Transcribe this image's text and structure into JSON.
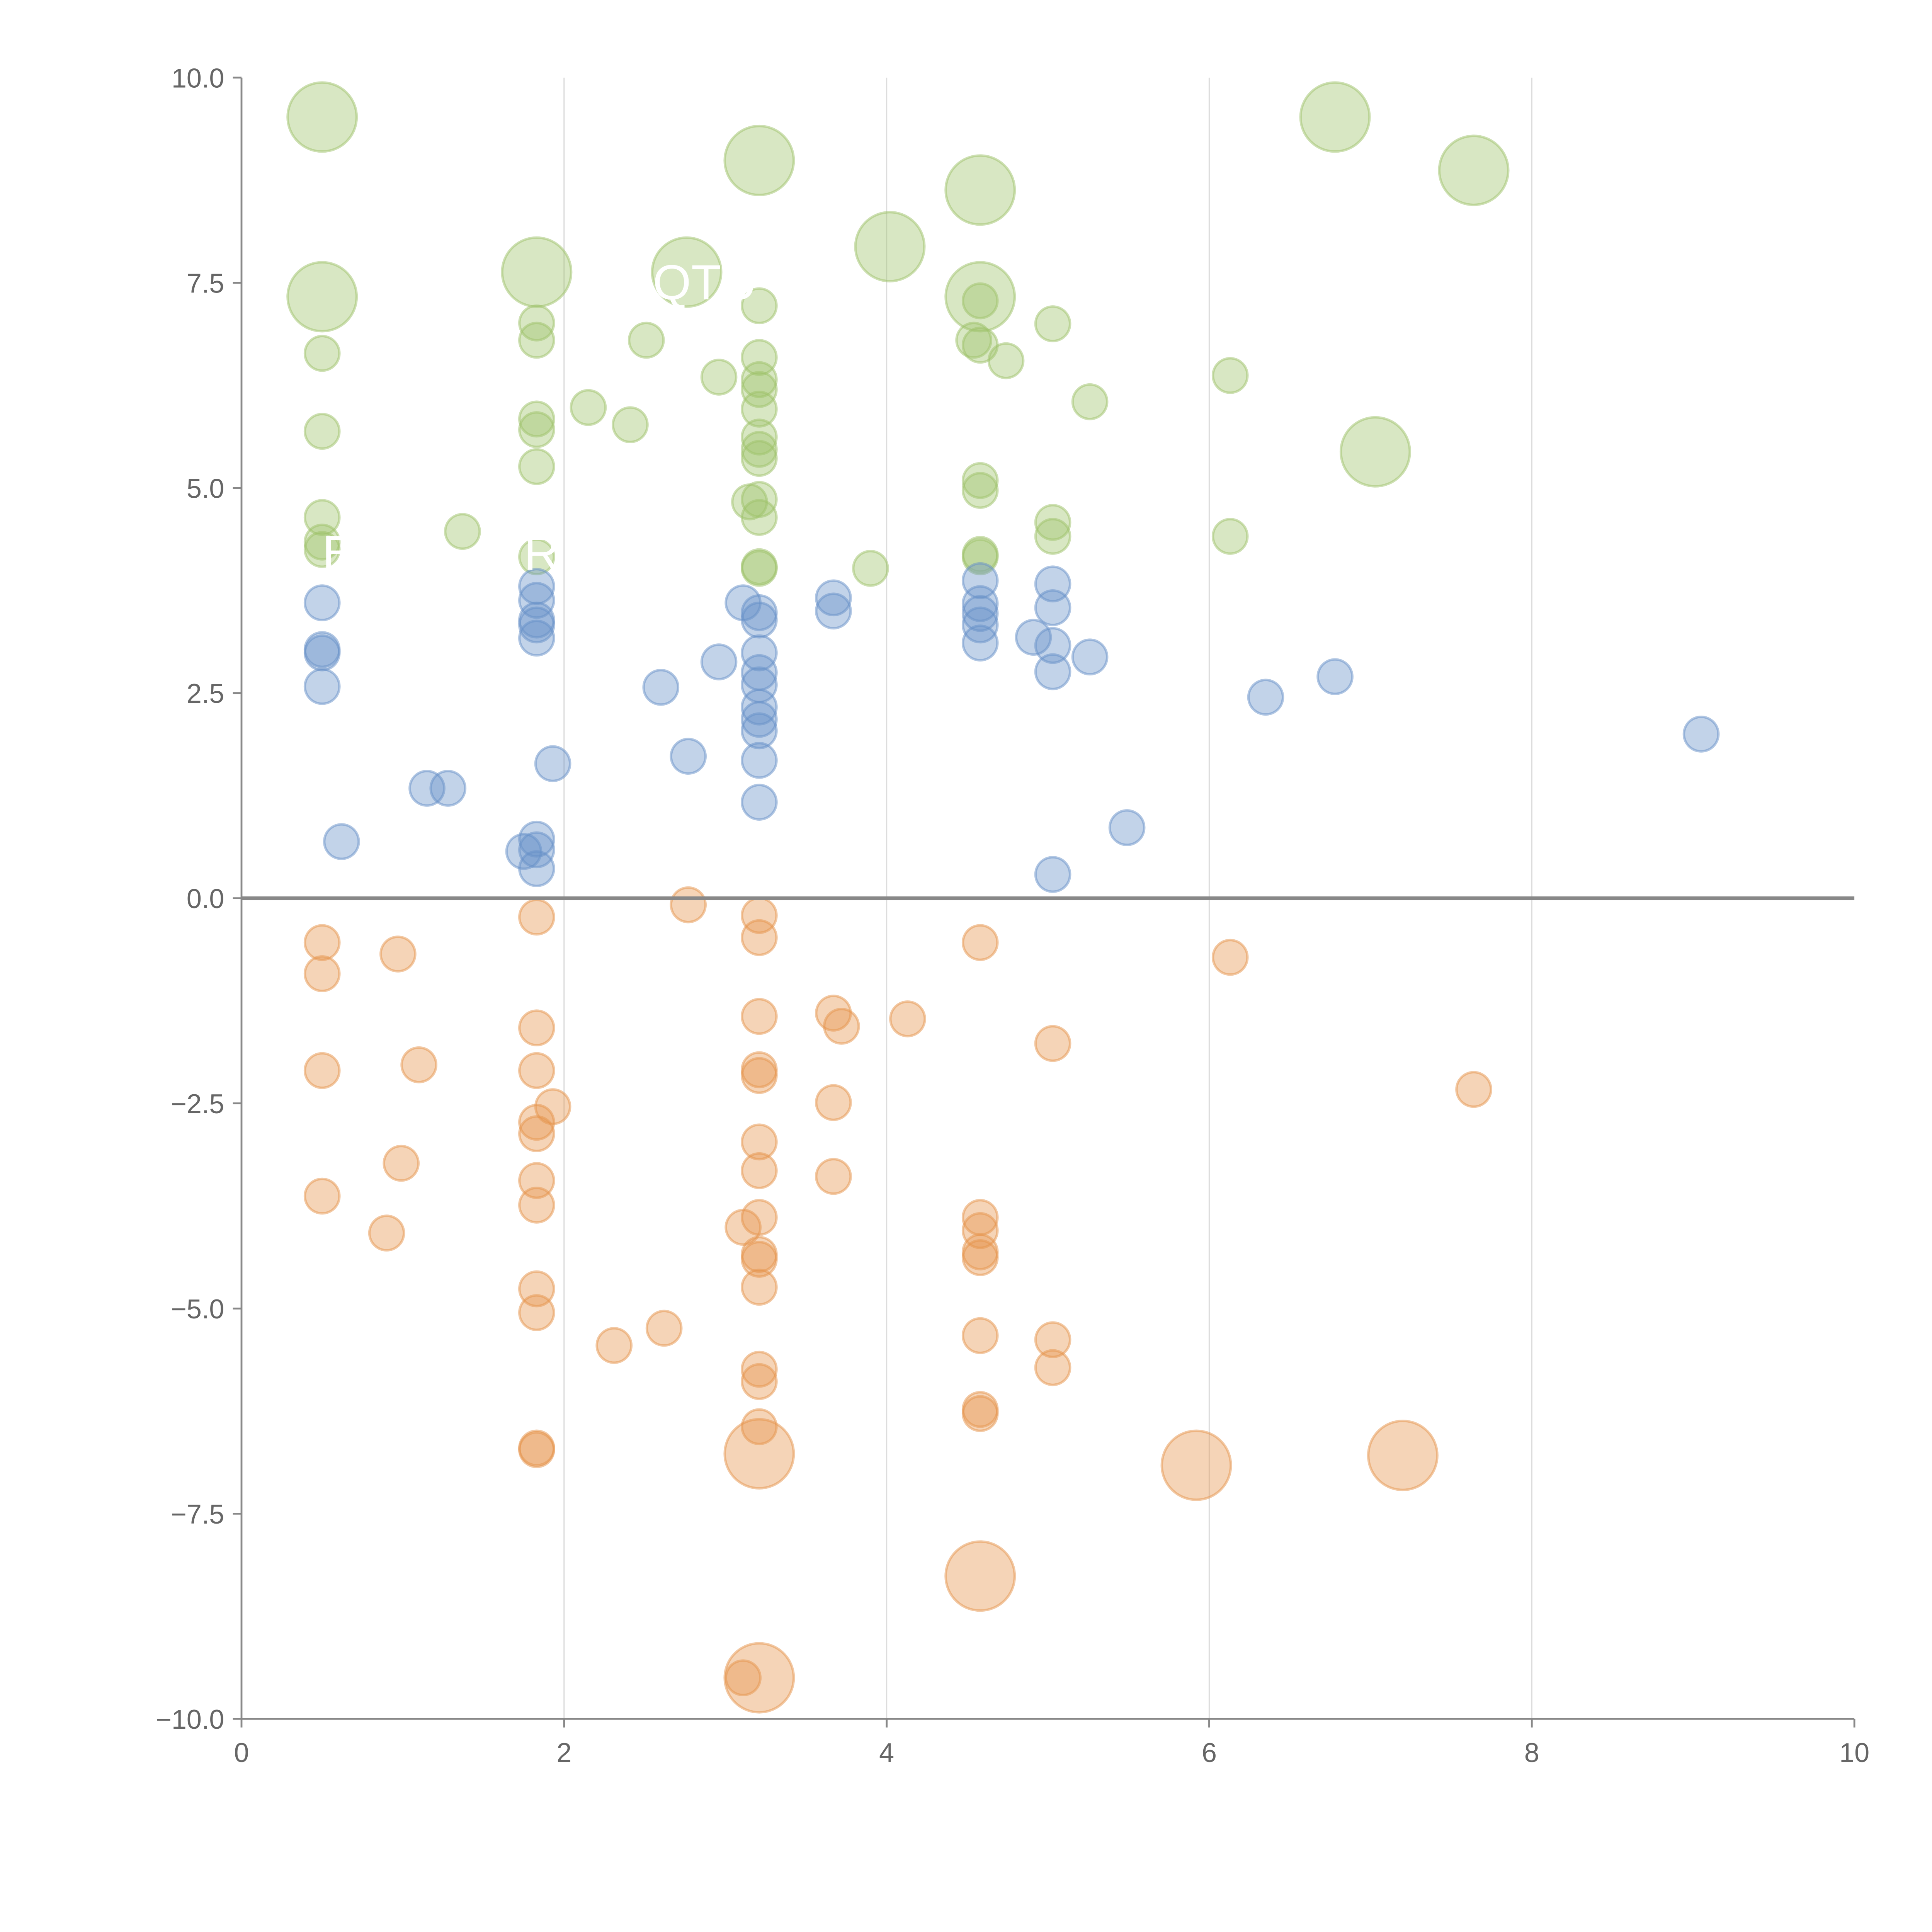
{
  "chart_data": {
    "type": "scatter",
    "title": "",
    "xlabel": "",
    "ylabel": "",
    "xlim": [
      0,
      10
    ],
    "ylim": [
      -10,
      10
    ],
    "grid": "vertical",
    "x_ticks": [
      "0",
      "2",
      "4",
      "6",
      "8",
      "10"
    ],
    "x_tick_values": [
      0,
      2,
      4,
      6,
      8,
      10
    ],
    "y_ticks": [
      "10.0",
      "7.5",
      "5.0",
      "2.5",
      "0.0",
      "−2.5",
      "−5.0",
      "−7.5",
      "−10.0"
    ],
    "y_tick_values": [
      10,
      7.5,
      5,
      2.5,
      0,
      -2.5,
      -5,
      -7.5,
      -10
    ],
    "colors": {
      "green": "#9ec26a",
      "blue": "#6690c8",
      "orange": "#e5944c",
      "axis": "#888888",
      "grid": "#dddddd"
    },
    "annotations": [
      {
        "text": "QTU",
        "x": 2.55,
        "y": 7.3
      },
      {
        "text": "B",
        "x": 0.5,
        "y": 4.0
      },
      {
        "text": "R",
        "x": 1.75,
        "y": 4.0
      }
    ],
    "series": [
      {
        "name": "green",
        "color": "#9ec26a",
        "points": [
          [
            0.5,
            9.52,
            4
          ],
          [
            0.5,
            7.33,
            4
          ],
          [
            1.83,
            7.63,
            4
          ],
          [
            2.76,
            7.63,
            4
          ],
          [
            3.21,
            8.99,
            4
          ],
          [
            4.02,
            7.94,
            4
          ],
          [
            4.58,
            8.63,
            4
          ],
          [
            4.58,
            7.33,
            4
          ],
          [
            6.78,
            9.52,
            4
          ],
          [
            7.64,
            8.87,
            4
          ],
          [
            7.03,
            5.44,
            4
          ],
          [
            0.5,
            6.64,
            1
          ],
          [
            0.5,
            5.69,
            1
          ],
          [
            0.5,
            4.64,
            1
          ],
          [
            0.5,
            4.34,
            1
          ],
          [
            0.5,
            4.25,
            1
          ],
          [
            1.37,
            4.47,
            1
          ],
          [
            1.83,
            7.01,
            1
          ],
          [
            1.83,
            6.8,
            1
          ],
          [
            1.83,
            5.84,
            1
          ],
          [
            1.83,
            5.71,
            1
          ],
          [
            1.83,
            5.26,
            1
          ],
          [
            1.83,
            4.16,
            1
          ],
          [
            2.15,
            5.98,
            1
          ],
          [
            2.41,
            5.77,
            1
          ],
          [
            2.51,
            6.8,
            1
          ],
          [
            2.96,
            6.35,
            1
          ],
          [
            3.21,
            7.22,
            1
          ],
          [
            3.21,
            6.59,
            1
          ],
          [
            3.21,
            6.32,
            1
          ],
          [
            3.21,
            6.2,
            1
          ],
          [
            3.21,
            5.96,
            1
          ],
          [
            3.21,
            5.62,
            1
          ],
          [
            3.21,
            5.47,
            1
          ],
          [
            3.21,
            5.36,
            1
          ],
          [
            3.15,
            4.83,
            1
          ],
          [
            3.21,
            4.86,
            1
          ],
          [
            3.21,
            4.64,
            1
          ],
          [
            3.21,
            4.04,
            1
          ],
          [
            3.21,
            4.02,
            1
          ],
          [
            3.9,
            4.02,
            1
          ],
          [
            4.54,
            6.8,
            1
          ],
          [
            4.58,
            7.28,
            1
          ],
          [
            4.58,
            6.74,
            1
          ],
          [
            4.74,
            6.55,
            1
          ],
          [
            4.58,
            5.09,
            1
          ],
          [
            4.58,
            4.97,
            1
          ],
          [
            4.58,
            4.19,
            1
          ],
          [
            4.58,
            4.16,
            1
          ],
          [
            5.03,
            7.0,
            1
          ],
          [
            5.03,
            4.58,
            1
          ],
          [
            5.03,
            4.41,
            1
          ],
          [
            5.26,
            6.05,
            1
          ],
          [
            6.13,
            6.37,
            1
          ],
          [
            6.13,
            4.41,
            1
          ]
        ]
      },
      {
        "name": "blue",
        "color": "#6690c8",
        "points": [
          [
            0.5,
            3.6,
            1
          ],
          [
            0.5,
            3.03,
            1
          ],
          [
            0.5,
            2.99,
            1
          ],
          [
            0.5,
            2.58,
            1
          ],
          [
            0.62,
            0.69,
            1
          ],
          [
            1.15,
            1.34,
            1
          ],
          [
            1.28,
            1.34,
            1
          ],
          [
            1.83,
            3.8,
            1
          ],
          [
            1.83,
            3.63,
            1
          ],
          [
            1.83,
            3.39,
            1
          ],
          [
            1.83,
            3.33,
            1
          ],
          [
            1.83,
            3.17,
            1
          ],
          [
            1.83,
            0.72,
            1
          ],
          [
            1.83,
            0.59,
            1
          ],
          [
            1.75,
            0.57,
            1
          ],
          [
            1.83,
            0.36,
            1
          ],
          [
            1.93,
            1.64,
            1
          ],
          [
            2.6,
            2.57,
            1
          ],
          [
            2.77,
            1.73,
            1
          ],
          [
            2.96,
            2.88,
            1
          ],
          [
            3.11,
            3.6,
            1
          ],
          [
            3.21,
            3.48,
            1
          ],
          [
            3.21,
            3.39,
            1
          ],
          [
            3.21,
            2.99,
            1
          ],
          [
            3.21,
            2.75,
            1
          ],
          [
            3.21,
            2.6,
            1
          ],
          [
            3.21,
            2.33,
            1
          ],
          [
            3.21,
            2.18,
            1
          ],
          [
            3.21,
            2.04,
            1
          ],
          [
            3.21,
            1.68,
            1
          ],
          [
            3.21,
            1.17,
            1
          ],
          [
            3.67,
            3.66,
            1
          ],
          [
            3.67,
            3.5,
            1
          ],
          [
            4.58,
            3.87,
            1
          ],
          [
            4.58,
            3.59,
            1
          ],
          [
            4.58,
            3.47,
            1
          ],
          [
            4.58,
            3.33,
            1
          ],
          [
            4.58,
            3.11,
            1
          ],
          [
            4.91,
            3.18,
            1
          ],
          [
            5.03,
            3.83,
            1
          ],
          [
            5.03,
            3.54,
            1
          ],
          [
            5.03,
            3.08,
            1
          ],
          [
            5.03,
            2.76,
            1
          ],
          [
            5.26,
            2.94,
            1
          ],
          [
            5.49,
            0.86,
            1
          ],
          [
            5.03,
            0.29,
            1
          ],
          [
            6.35,
            2.45,
            1
          ],
          [
            6.78,
            2.7,
            1
          ],
          [
            9.05,
            2.0,
            1
          ]
        ]
      },
      {
        "name": "orange",
        "color": "#e5944c",
        "points": [
          [
            3.21,
            -6.77,
            4
          ],
          [
            3.21,
            -9.5,
            4
          ],
          [
            4.58,
            -8.26,
            4
          ],
          [
            5.92,
            -6.91,
            4
          ],
          [
            7.2,
            -6.79,
            4
          ],
          [
            0.5,
            -0.54,
            1
          ],
          [
            0.5,
            -0.92,
            1
          ],
          [
            0.5,
            -2.1,
            1
          ],
          [
            0.5,
            -3.63,
            1
          ],
          [
            0.97,
            -0.68,
            1
          ],
          [
            1.1,
            -2.03,
            1
          ],
          [
            0.99,
            -3.23,
            1
          ],
          [
            0.9,
            -4.08,
            1
          ],
          [
            1.83,
            -0.23,
            1
          ],
          [
            1.83,
            -1.58,
            1
          ],
          [
            1.83,
            -2.1,
            1
          ],
          [
            1.83,
            -2.73,
            1
          ],
          [
            1.83,
            -2.87,
            1
          ],
          [
            1.93,
            -2.54,
            1
          ],
          [
            1.83,
            -3.44,
            1
          ],
          [
            1.83,
            -3.74,
            1
          ],
          [
            1.83,
            -4.76,
            1
          ],
          [
            1.83,
            -5.05,
            1
          ],
          [
            1.83,
            -6.7,
            1
          ],
          [
            1.83,
            -6.72,
            1
          ],
          [
            2.31,
            -5.45,
            1
          ],
          [
            2.62,
            -5.24,
            1
          ],
          [
            2.77,
            -0.08,
            1
          ],
          [
            3.21,
            -0.21,
            1
          ],
          [
            3.21,
            -0.48,
            1
          ],
          [
            3.21,
            -1.44,
            1
          ],
          [
            3.21,
            -2.09,
            1
          ],
          [
            3.21,
            -2.16,
            1
          ],
          [
            3.21,
            -2.97,
            1
          ],
          [
            3.21,
            -3.32,
            1
          ],
          [
            3.21,
            -3.89,
            1
          ],
          [
            3.11,
            -4.01,
            1
          ],
          [
            3.21,
            -4.34,
            1
          ],
          [
            3.21,
            -4.4,
            1
          ],
          [
            3.21,
            -4.74,
            1
          ],
          [
            3.21,
            -5.74,
            1
          ],
          [
            3.21,
            -5.89,
            1
          ],
          [
            3.21,
            -6.44,
            1
          ],
          [
            3.11,
            -9.5,
            1
          ],
          [
            3.67,
            -1.4,
            1
          ],
          [
            3.72,
            -1.56,
            1
          ],
          [
            4.13,
            -1.47,
            1
          ],
          [
            3.67,
            -2.49,
            1
          ],
          [
            3.67,
            -3.39,
            1
          ],
          [
            4.58,
            -0.54,
            1
          ],
          [
            4.58,
            -3.89,
            1
          ],
          [
            4.58,
            -4.05,
            1
          ],
          [
            4.58,
            -4.31,
            1
          ],
          [
            4.58,
            -4.38,
            1
          ],
          [
            4.58,
            -5.33,
            1
          ],
          [
            4.58,
            -6.23,
            1
          ],
          [
            4.58,
            -6.28,
            1
          ],
          [
            5.03,
            -1.77,
            1
          ],
          [
            5.03,
            -5.38,
            1
          ],
          [
            5.03,
            -5.72,
            1
          ],
          [
            6.13,
            -0.72,
            1
          ],
          [
            7.64,
            -2.33,
            1
          ]
        ]
      }
    ]
  }
}
